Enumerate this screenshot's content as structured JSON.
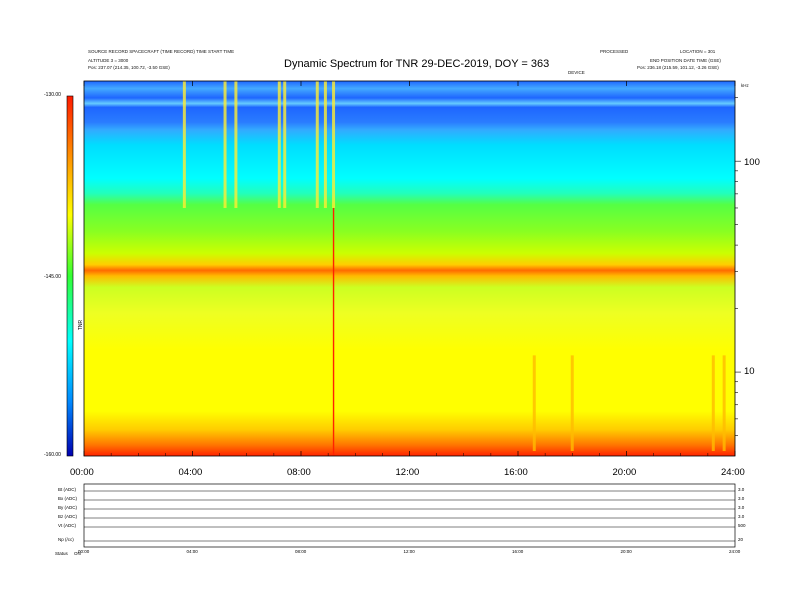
{
  "header": {
    "title": "Dynamic Spectrum for TNR 29-DEC-2019, DOY = 363",
    "left_line1": "SOURCE  RECORD  SPACECRAFT  (TIME  RECORD)  TIME  START  TIME",
    "left_line2": "ALTITUDE  3  = 3000",
    "left_pos": "Pos:     237.07 (214.35, 100.72, -3.50 GSE)",
    "right_top_a": "PROCESSED",
    "right_top_b": "LOCATION  = 301",
    "right_line2": "END  POSITION  DATE  TIME  (GSE)",
    "right_pos": "Pos:     236.18 (215.59, 101.12, -3.26 GSE)",
    "center_small": "DEVICE",
    "corner_right": "kHz"
  },
  "colorbar": {
    "ticks": [
      "-130.00",
      "-145.00",
      "-160.00"
    ],
    "label": "TNR",
    "colors": [
      "#ff1a00",
      "#ff9900",
      "#ffff00",
      "#33ff33",
      "#00ffff",
      "#0088ff",
      "#0000b0"
    ]
  },
  "chart_data": {
    "type": "heatmap",
    "title": "Dynamic Spectrum for TNR 29-DEC-2019, DOY = 363",
    "xlabel": "",
    "ylabel": "",
    "x_tick_labels": [
      "00:00",
      "04:00",
      "08:00",
      "12:00",
      "16:00",
      "20:00",
      "24:00"
    ],
    "xlim_hours": [
      0,
      24
    ],
    "y_scale": "log",
    "y_unit": "kHz",
    "y_tick_labels": [
      "100",
      "10"
    ],
    "ylim_khz": [
      4,
      240
    ],
    "colorbar_range": [
      -160,
      -130
    ],
    "bands_khz_from_top": [
      {
        "from": 240,
        "to": 48,
        "level": "cyan-blue"
      },
      {
        "from": 48,
        "to": 28,
        "level": "green"
      },
      {
        "from": 28,
        "to": 25,
        "level": "orange"
      },
      {
        "from": 25,
        "to": 5,
        "level": "yellow"
      },
      {
        "from": 5,
        "to": 4,
        "level": "red"
      }
    ],
    "bursts_hours": [
      3.7,
      5.2,
      5.6,
      7.2,
      7.4,
      8.6,
      8.9,
      9.2,
      16.6,
      18.0,
      23.2,
      23.6
    ],
    "red_spike_hour": 9.2
  },
  "lower_panel": {
    "rows": [
      {
        "label": "Bt (ADC)",
        "right": "3.0"
      },
      {
        "label": "Bx (ADC)",
        "right": "3.0"
      },
      {
        "label": "By (ADC)",
        "right": "3.0"
      },
      {
        "label": "Bz (ADC)",
        "right": "3.0"
      },
      {
        "label": "Vt (ADC)",
        "right": "500"
      },
      {
        "label": "Np (/cc)",
        "right": "20"
      }
    ],
    "x_tick_labels": [
      "00:00",
      "04:00",
      "08:00",
      "12:00",
      "16:00",
      "20:00",
      "24:00"
    ],
    "footer_label": "Status",
    "footer_value": "ON"
  }
}
